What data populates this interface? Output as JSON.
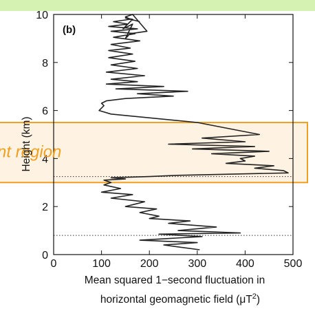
{
  "chart_data": {
    "type": "line",
    "panel_label": "(b)",
    "xlabel_line1": "Mean squared 1−second fluctuation in",
    "xlabel_line2": "horizontal geomagnetic field (μT",
    "xlabel_superscript": "2",
    "xlabel_close": ")",
    "ylabel": "Height (km)",
    "xlim": [
      0,
      500
    ],
    "ylim": [
      0,
      10
    ],
    "xticks": [
      "0",
      "100",
      "200",
      "300",
      "400",
      "500"
    ],
    "yticks": [
      "0",
      "2",
      "4",
      "6",
      "8",
      "10"
    ],
    "reference_lines_y": [
      0.8,
      3.25
    ],
    "highlight": {
      "label": "nt region",
      "y_range": [
        3.0,
        5.5
      ],
      "fill": "#fdeed8",
      "stroke": "#f0a020"
    },
    "series": [
      {
        "color": "#222222",
        "x": [
          305,
          230,
          300,
          180,
          310,
          220,
          390,
          260,
          340,
          240,
          285,
          200,
          220,
          180,
          215,
          150,
          190,
          120,
          165,
          100,
          140,
          105,
          120,
          105,
          150,
          120,
          200,
          260,
          490,
          480,
          420,
          460,
          360,
          400,
          390,
          420,
          330,
          450,
          290,
          420,
          240,
          400,
          310,
          430,
          300,
          120,
          95,
          105,
          100,
          110,
          150,
          250,
          175,
          280,
          130,
          230,
          110,
          175,
          120,
          190,
          110,
          175,
          120,
          170,
          115,
          165,
          115,
          160,
          120,
          180,
          125,
          170,
          120,
          175,
          115,
          155,
          125,
          160,
          150,
          165,
          195,
          160,
          150,
          165,
          145,
          165,
          150,
          180
        ],
        "y": [
          0.2,
          0.4,
          0.5,
          0.6,
          0.75,
          0.85,
          0.9,
          1.0,
          1.15,
          1.3,
          1.4,
          1.5,
          1.6,
          1.75,
          1.9,
          2.0,
          2.2,
          2.35,
          2.5,
          2.6,
          2.75,
          2.9,
          3.0,
          3.1,
          3.15,
          3.2,
          3.25,
          3.3,
          3.4,
          3.5,
          3.6,
          3.7,
          3.8,
          3.9,
          4.0,
          4.1,
          4.2,
          4.3,
          4.4,
          4.5,
          4.6,
          4.7,
          4.85,
          5.0,
          5.5,
          5.85,
          6.0,
          6.2,
          6.3,
          6.4,
          6.5,
          6.6,
          6.7,
          6.8,
          6.9,
          7.0,
          7.1,
          7.2,
          7.3,
          7.45,
          7.6,
          7.75,
          7.9,
          8.05,
          8.2,
          8.35,
          8.5,
          8.6,
          8.75,
          8.9,
          9.05,
          9.2,
          9.3,
          9.4,
          9.5,
          9.6,
          9.7,
          9.8,
          9.9,
          10.0,
          9.3,
          9.2,
          9.0,
          9.6,
          9.4,
          9.8,
          9.85,
          9.7
        ]
      }
    ]
  }
}
